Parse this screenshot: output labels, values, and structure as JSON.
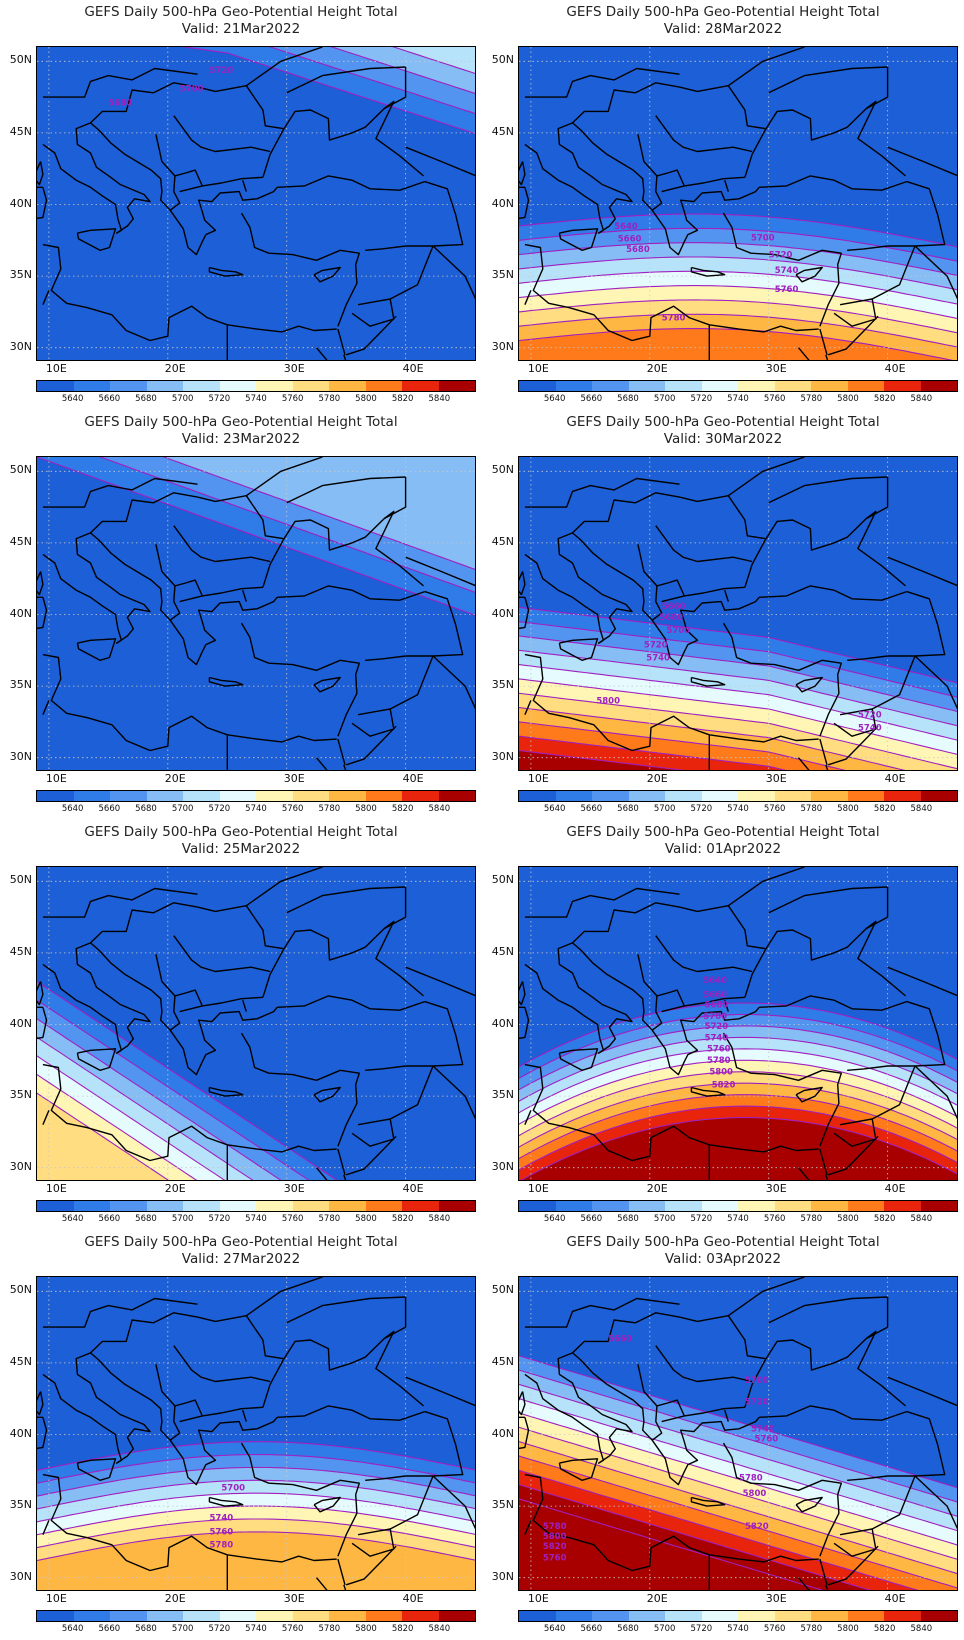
{
  "title_line": "GEFS Daily 500-hPa Geo-Potential Height Total",
  "valid_prefix": "Valid:",
  "lat_labels": [
    "50N",
    "45N",
    "40N",
    "35N",
    "30N"
  ],
  "lon_labels": [
    "10E",
    "20E",
    "30E",
    "40E"
  ],
  "colorbar": {
    "labels": [
      "5640",
      "5660",
      "5680",
      "5700",
      "5720",
      "5740",
      "5760",
      "5780",
      "5800",
      "5820",
      "5840"
    ],
    "colors": [
      "#1c5fd6",
      "#2f7be8",
      "#5294f0",
      "#86bdf5",
      "#b7e3fa",
      "#e6fbfd",
      "#fff6b5",
      "#ffdd80",
      "#ffb743",
      "#ff7a1a",
      "#e8240c",
      "#a80000"
    ]
  },
  "panels": [
    {
      "valid": "21Mar2022",
      "contour_labels": [
        "5720",
        "5700",
        "5680"
      ]
    },
    {
      "valid": "28Mar2022",
      "contour_labels": [
        "5640",
        "5660",
        "5680",
        "5700",
        "5720",
        "5740",
        "5760",
        "5780"
      ]
    },
    {
      "valid": "23Mar2022",
      "contour_labels": []
    },
    {
      "valid": "30Mar2022",
      "contour_labels": [
        "5660",
        "5680",
        "5700",
        "5720",
        "5740",
        "5800",
        "5720",
        "5740"
      ]
    },
    {
      "valid": "25Mar2022",
      "contour_labels": []
    },
    {
      "valid": "01Apr2022",
      "contour_labels": [
        "5640",
        "5660",
        "5680",
        "5700",
        "5720",
        "5740",
        "5760",
        "5780",
        "5800",
        "5820"
      ]
    },
    {
      "valid": "27Mar2022",
      "contour_labels": [
        "5700",
        "5740",
        "5760",
        "5780"
      ]
    },
    {
      "valid": "03Apr2022",
      "contour_labels": [
        "5660",
        "5700",
        "5720",
        "5740",
        "5760",
        "5780",
        "5800",
        "5820",
        "5760",
        "5780",
        "5800",
        "5820"
      ]
    }
  ]
}
